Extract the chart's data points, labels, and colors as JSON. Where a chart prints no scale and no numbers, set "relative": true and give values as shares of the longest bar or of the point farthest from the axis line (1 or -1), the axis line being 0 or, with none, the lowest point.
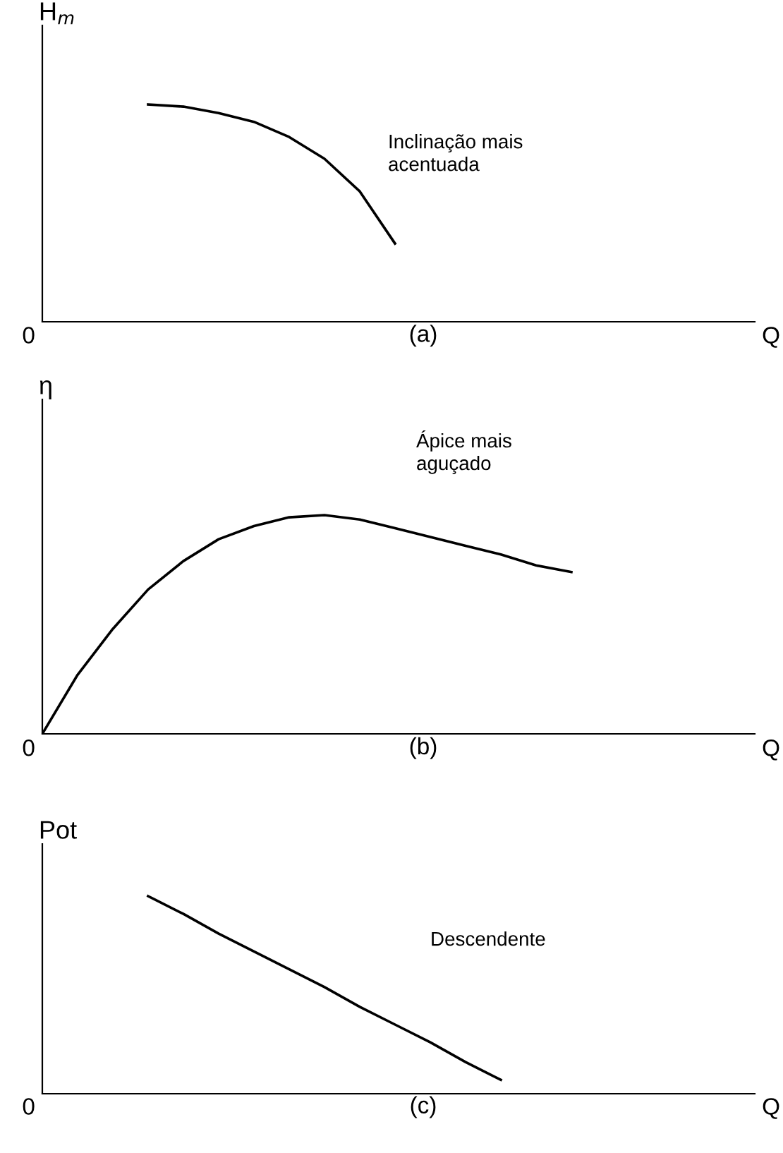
{
  "chart_data": [
    {
      "type": "line",
      "relative": true,
      "ylabel": "H$_{m}$",
      "xlabel": "(a)",
      "annotations": [
        "0",
        "Q",
        "Inclinação mais\nacentuada"
      ],
      "grid": false,
      "color": "#000000",
      "categories": [
        null,
        null,
        null,
        null,
        null,
        null,
        null,
        null,
        null,
        null,
        null,
        null,
        null,
        null,
        null,
        null,
        null,
        null,
        null,
        null,
        null
      ],
      "values": [
        null,
        null,
        null,
        1,
        0.99,
        0.96,
        0.92,
        0.85,
        0.75,
        0.6,
        0.36,
        null,
        null,
        null,
        null,
        null,
        null,
        null,
        null,
        null,
        null
      ]
    },
    {
      "type": "line",
      "relative": true,
      "ylabel": "η",
      "xlabel": "(b)",
      "annotations": [
        "0",
        "Q",
        "Ápice mais\naguçado"
      ],
      "grid": false,
      "color": "#000000",
      "categories": [
        null,
        null,
        null,
        null,
        null,
        null,
        null,
        null,
        null,
        null,
        null,
        null,
        null,
        null,
        null,
        null,
        null,
        null,
        null,
        null,
        null
      ],
      "values": [
        0,
        0.27,
        0.48,
        0.66,
        0.79,
        0.89,
        0.95,
        0.99,
        1,
        0.98,
        0.94,
        0.9,
        0.86,
        0.82,
        0.77,
        0.74,
        null,
        null,
        null,
        null,
        null
      ]
    },
    {
      "type": "line",
      "relative": true,
      "ylabel": "Pot",
      "xlabel": "(c)",
      "annotations": [
        "0",
        "Q",
        "Descendente"
      ],
      "grid": false,
      "color": "#000000",
      "categories": [
        null,
        null,
        null,
        null,
        null,
        null,
        null,
        null,
        null,
        null,
        null,
        null,
        null,
        null,
        null,
        null,
        null,
        null,
        null,
        null,
        null
      ],
      "values": [
        null,
        null,
        null,
        1,
        0.91,
        0.81,
        0.72,
        0.63,
        0.54,
        0.44,
        0.35,
        0.26,
        0.16,
        0.07,
        null,
        null,
        null,
        null,
        null,
        null,
        null
      ]
    }
  ]
}
